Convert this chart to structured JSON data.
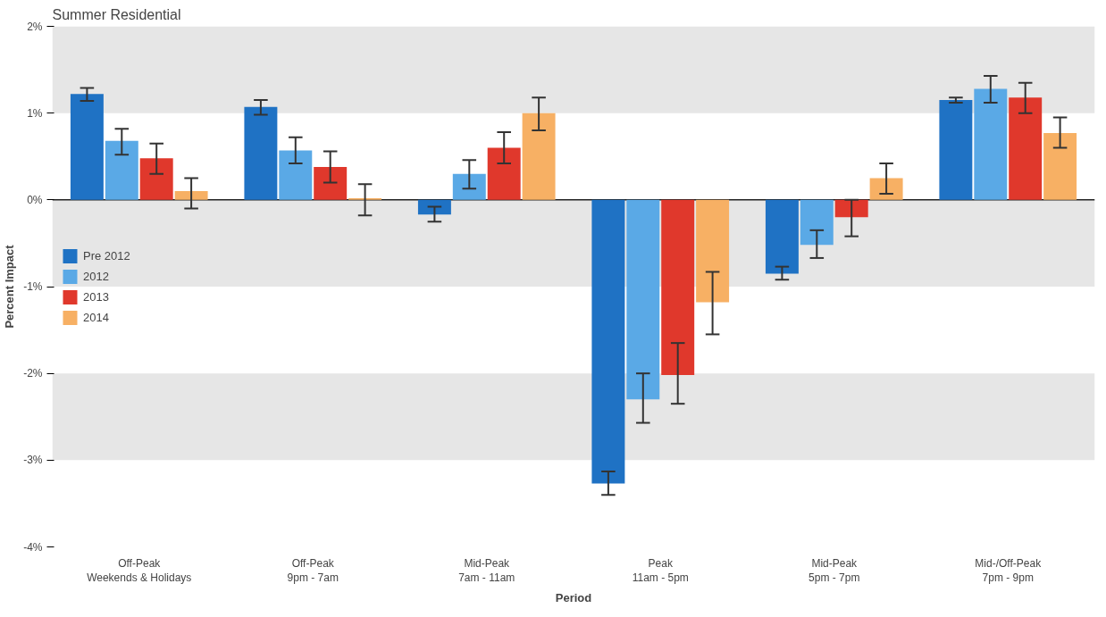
{
  "chart_data": {
    "type": "bar",
    "title": "Summer Residential",
    "xlabel": "Period",
    "ylabel": "Percent Impact",
    "categories": [
      "Off-Peak\nWeekends & Holidays",
      "Off-Peak\n9pm - 7am",
      "Mid-Peak\n7am - 11am",
      "Peak\n11am - 5pm",
      "Mid-Peak\n5pm - 7pm",
      "Mid-/Off-Peak\n7pm - 9pm"
    ],
    "series": [
      {
        "name": "Pre 2012",
        "color": "#1f72c4",
        "values": [
          1.22,
          1.07,
          -0.17,
          -3.27,
          -0.85,
          1.15
        ],
        "errors": [
          [
            1.14,
            1.29
          ],
          [
            0.98,
            1.15
          ],
          [
            -0.25,
            -0.08
          ],
          [
            -3.4,
            -3.13
          ],
          [
            -0.92,
            -0.77
          ],
          [
            1.12,
            1.18
          ]
        ]
      },
      {
        "name": "2012",
        "color": "#5aa9e6",
        "values": [
          0.68,
          0.57,
          0.3,
          -2.3,
          -0.52,
          1.28
        ],
        "errors": [
          [
            0.52,
            0.82
          ],
          [
            0.42,
            0.72
          ],
          [
            0.13,
            0.46
          ],
          [
            -2.57,
            -2.0
          ],
          [
            -0.67,
            -0.35
          ],
          [
            1.12,
            1.43
          ]
        ]
      },
      {
        "name": "2013",
        "color": "#e0382c",
        "values": [
          0.48,
          0.38,
          0.6,
          -2.02,
          -0.2,
          1.18
        ],
        "errors": [
          [
            0.3,
            0.65
          ],
          [
            0.2,
            0.56
          ],
          [
            0.42,
            0.78
          ],
          [
            -2.35,
            -1.65
          ],
          [
            -0.42,
            0.0
          ],
          [
            1.0,
            1.35
          ]
        ]
      },
      {
        "name": "2014",
        "color": "#f7b064",
        "values": [
          0.1,
          0.02,
          1.0,
          -1.18,
          0.25,
          0.77
        ],
        "errors": [
          [
            -0.1,
            0.25
          ],
          [
            -0.18,
            0.18
          ],
          [
            0.8,
            1.18
          ],
          [
            -1.55,
            -0.83
          ],
          [
            0.07,
            0.42
          ],
          [
            0.6,
            0.95
          ]
        ]
      }
    ],
    "ylim": [
      -4,
      2
    ],
    "yticks": [
      {
        "value": 2,
        "label": "2%"
      },
      {
        "value": 1,
        "label": "1%"
      },
      {
        "value": 0,
        "label": "0%"
      },
      {
        "value": -1,
        "label": "-1%"
      },
      {
        "value": -2,
        "label": "-2%"
      },
      {
        "value": -3,
        "label": "-3%"
      },
      {
        "value": -4,
        "label": "-4%"
      }
    ],
    "bands": [
      {
        "axis": "y",
        "from": 1,
        "to": 2,
        "color": "#e6e6e6"
      },
      {
        "axis": "y",
        "from": -1,
        "to": 0,
        "color": "#e6e6e6"
      },
      {
        "axis": "y",
        "from": -3,
        "to": -2,
        "color": "#e6e6e6"
      }
    ],
    "ref_lines": [
      {
        "axis": "y",
        "value": 0,
        "color": "#222222"
      }
    ],
    "legend": "center left",
    "grid": false
  }
}
